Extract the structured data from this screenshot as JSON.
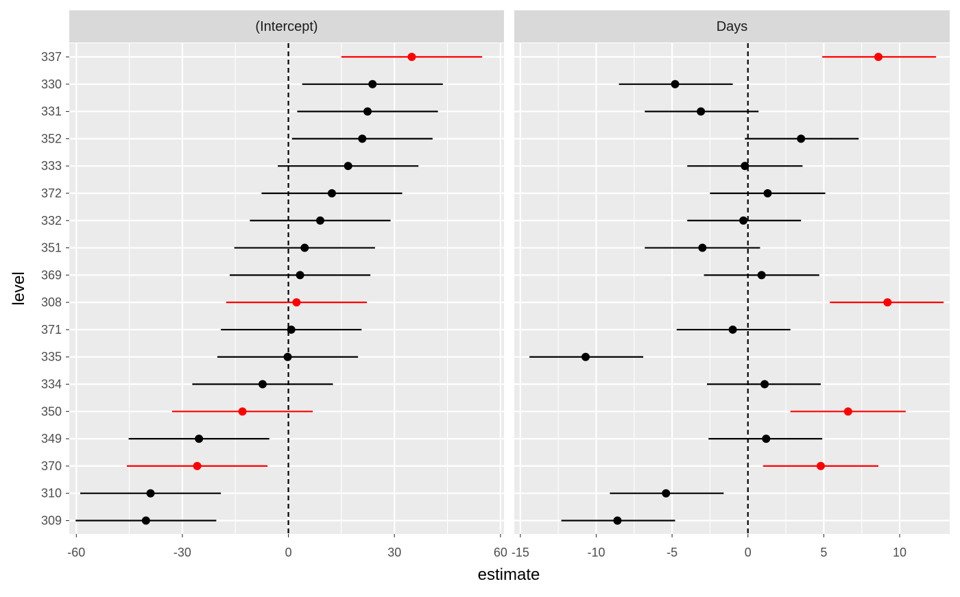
{
  "chart_data": {
    "type": "scatter",
    "xlabel": "estimate",
    "ylabel": "level",
    "levels": [
      "337",
      "330",
      "331",
      "352",
      "333",
      "372",
      "332",
      "351",
      "369",
      "308",
      "371",
      "335",
      "334",
      "350",
      "349",
      "370",
      "310",
      "309"
    ],
    "colors": {
      "normal": "#000000",
      "highlight": "#ff0000",
      "panel_bg": "#ebebeb",
      "strip_bg": "#d9d9d9",
      "grid": "#ffffff",
      "reference_line": "#000000"
    },
    "panels": [
      {
        "title": "(Intercept)",
        "xlim": [
          -62,
          61
        ],
        "xticks": [
          -60,
          -30,
          0,
          30,
          60
        ],
        "xtick_labels": [
          "-60",
          "-30",
          "0",
          "30",
          "60"
        ],
        "reference_x": 0,
        "points": [
          {
            "level": "337",
            "estimate": 34.9,
            "low": 15.0,
            "high": 54.8,
            "highlight": true
          },
          {
            "level": "330",
            "estimate": 23.8,
            "low": 3.9,
            "high": 43.7,
            "highlight": false
          },
          {
            "level": "331",
            "estimate": 22.4,
            "low": 2.5,
            "high": 42.3,
            "highlight": false
          },
          {
            "level": "352",
            "estimate": 20.9,
            "low": 1.0,
            "high": 40.8,
            "highlight": false
          },
          {
            "level": "333",
            "estimate": 16.9,
            "low": -3.0,
            "high": 36.8,
            "highlight": false
          },
          {
            "level": "372",
            "estimate": 12.3,
            "low": -7.6,
            "high": 32.2,
            "highlight": false
          },
          {
            "level": "332",
            "estimate": 9.0,
            "low": -10.9,
            "high": 28.9,
            "highlight": false
          },
          {
            "level": "351",
            "estimate": 4.6,
            "low": -15.3,
            "high": 24.5,
            "highlight": false
          },
          {
            "level": "369",
            "estimate": 3.3,
            "low": -16.6,
            "high": 23.2,
            "highlight": false
          },
          {
            "level": "308",
            "estimate": 2.3,
            "low": -17.6,
            "high": 22.2,
            "highlight": true
          },
          {
            "level": "371",
            "estimate": 0.8,
            "low": -19.1,
            "high": 20.7,
            "highlight": false
          },
          {
            "level": "335",
            "estimate": -0.2,
            "low": -20.1,
            "high": 19.7,
            "highlight": false
          },
          {
            "level": "334",
            "estimate": -7.3,
            "low": -27.2,
            "high": 12.6,
            "highlight": false
          },
          {
            "level": "350",
            "estimate": -13.0,
            "low": -32.9,
            "high": 6.9,
            "highlight": true
          },
          {
            "level": "349",
            "estimate": -25.3,
            "low": -45.2,
            "high": -5.4,
            "highlight": false
          },
          {
            "level": "370",
            "estimate": -25.8,
            "low": -45.7,
            "high": -5.9,
            "highlight": true
          },
          {
            "level": "310",
            "estimate": -39.0,
            "low": -58.9,
            "high": -19.1,
            "highlight": false
          },
          {
            "level": "309",
            "estimate": -40.3,
            "low": -60.2,
            "high": -20.4,
            "highlight": false
          }
        ]
      },
      {
        "title": "Days",
        "xlim": [
          -15.4,
          13.3
        ],
        "xticks": [
          -15,
          -10,
          -5,
          0,
          5,
          10
        ],
        "xtick_labels": [
          "-15",
          "-10",
          "-5",
          "0",
          "5",
          "10"
        ],
        "reference_x": 0,
        "points": [
          {
            "level": "337",
            "estimate": 8.6,
            "low": 4.9,
            "high": 12.4,
            "highlight": true
          },
          {
            "level": "330",
            "estimate": -4.8,
            "low": -8.5,
            "high": -1.0,
            "highlight": false
          },
          {
            "level": "331",
            "estimate": -3.1,
            "low": -6.8,
            "high": 0.7,
            "highlight": false
          },
          {
            "level": "352",
            "estimate": 3.5,
            "low": -0.2,
            "high": 7.3,
            "highlight": false
          },
          {
            "level": "333",
            "estimate": -0.2,
            "low": -4.0,
            "high": 3.6,
            "highlight": false
          },
          {
            "level": "372",
            "estimate": 1.3,
            "low": -2.5,
            "high": 5.1,
            "highlight": false
          },
          {
            "level": "332",
            "estimate": -0.3,
            "low": -4.0,
            "high": 3.5,
            "highlight": false
          },
          {
            "level": "351",
            "estimate": -3.0,
            "low": -6.8,
            "high": 0.8,
            "highlight": false
          },
          {
            "level": "369",
            "estimate": 0.9,
            "low": -2.9,
            "high": 4.7,
            "highlight": false
          },
          {
            "level": "308",
            "estimate": 9.2,
            "low": 5.4,
            "high": 12.9,
            "highlight": true
          },
          {
            "level": "371",
            "estimate": -1.0,
            "low": -4.7,
            "high": 2.8,
            "highlight": false
          },
          {
            "level": "335",
            "estimate": -10.7,
            "low": -14.4,
            "high": -6.9,
            "highlight": false
          },
          {
            "level": "334",
            "estimate": 1.1,
            "low": -2.7,
            "high": 4.8,
            "highlight": false
          },
          {
            "level": "350",
            "estimate": 6.6,
            "low": 2.8,
            "high": 10.4,
            "highlight": true
          },
          {
            "level": "349",
            "estimate": 1.2,
            "low": -2.6,
            "high": 4.9,
            "highlight": false
          },
          {
            "level": "370",
            "estimate": 4.8,
            "low": 1.0,
            "high": 8.6,
            "highlight": true
          },
          {
            "level": "310",
            "estimate": -5.4,
            "low": -9.1,
            "high": -1.6,
            "highlight": false
          },
          {
            "level": "309",
            "estimate": -8.6,
            "low": -12.3,
            "high": -4.8,
            "highlight": false
          }
        ]
      }
    ]
  }
}
